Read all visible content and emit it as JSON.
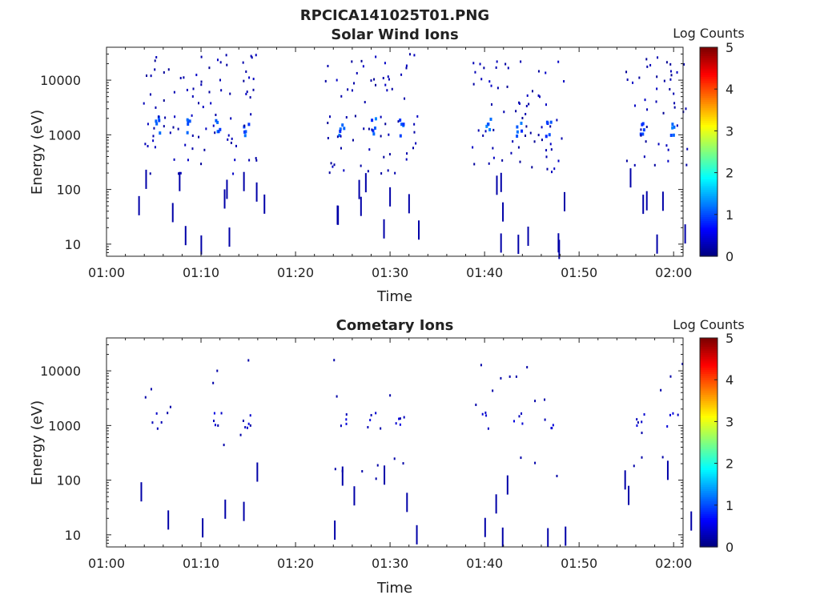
{
  "figure": {
    "title": "RPCICA141025T01.PNG"
  },
  "chart_data": [
    {
      "type": "heatmap",
      "title": "Solar Wind Ions",
      "xlabel": "Time",
      "ylabel": "Energy (eV)",
      "x_ticks": [
        "01:00",
        "01:10",
        "01:20",
        "01:30",
        "01:40",
        "01:50",
        "02:00"
      ],
      "x_range_minutes": [
        0,
        61
      ],
      "y_scale": "log",
      "y_ticks": [
        "10",
        "100",
        "1000",
        "10000"
      ],
      "y_range": [
        6,
        40000
      ],
      "colorbar": {
        "label": "Log Counts",
        "range": [
          0,
          5
        ],
        "ticks": [
          "0",
          "1",
          "2",
          "3",
          "4",
          "5"
        ]
      },
      "colormap": "jet",
      "grid": false,
      "bursts_minutes": [
        5.3,
        8.4,
        11.6,
        14.7,
        24.8,
        28.1,
        31.1,
        40.3,
        43.6,
        46.7,
        56.6,
        59.8
      ],
      "peak_energy_eV": 1500,
      "peak_log_counts": 1.3
    },
    {
      "type": "heatmap",
      "title": "Cometary Ions",
      "xlabel": "Time",
      "ylabel": "Energy (eV)",
      "x_ticks": [
        "01:00",
        "01:10",
        "01:20",
        "01:30",
        "01:40",
        "01:50",
        "02:00"
      ],
      "x_range_minutes": [
        0,
        61
      ],
      "y_scale": "log",
      "y_ticks": [
        "10",
        "100",
        "1000",
        "10000"
      ],
      "y_range": [
        6,
        40000
      ],
      "colorbar": {
        "label": "Log Counts",
        "range": [
          0,
          5
        ],
        "ticks": [
          "0",
          "1",
          "2",
          "3",
          "4",
          "5"
        ]
      },
      "colormap": "jet",
      "grid": false,
      "bursts_minutes": [
        5.3,
        11.6,
        14.7,
        24.8,
        28.1,
        31.1,
        40.3,
        43.6,
        46.7,
        56.6,
        59.8
      ],
      "peak_energy_eV": 1300,
      "peak_log_counts": 0.5
    }
  ]
}
